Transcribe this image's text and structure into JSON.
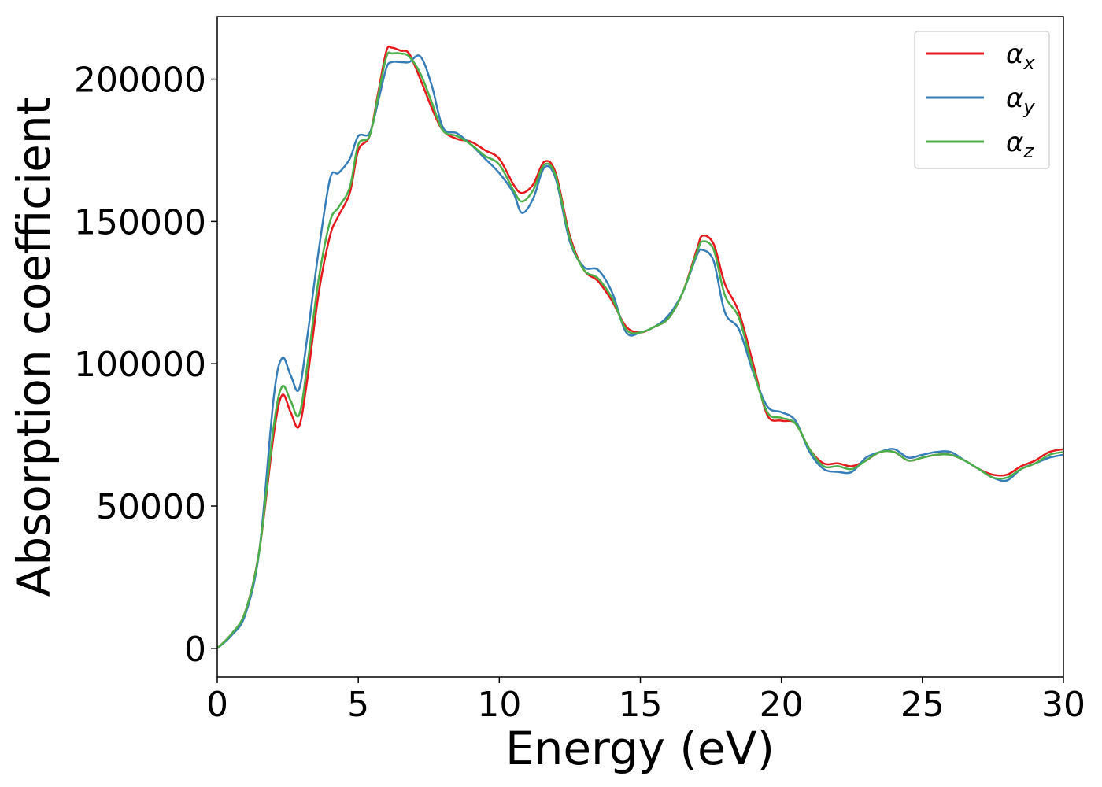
{
  "chart_data": {
    "type": "line",
    "xlabel": "Energy (eV)",
    "ylabel": "Absorption coefficient",
    "xlim": [
      0,
      30
    ],
    "ylim": [
      -10000,
      222000
    ],
    "xticks": [
      0,
      5,
      10,
      15,
      20,
      25,
      30
    ],
    "xtick_labels": [
      "0",
      "5",
      "10",
      "15",
      "20",
      "25",
      "30"
    ],
    "yticks": [
      0,
      50000,
      100000,
      150000,
      200000
    ],
    "ytick_labels": [
      "0",
      "50000",
      "100000",
      "150000",
      "200000"
    ],
    "grid": false,
    "legend_position": "top-right",
    "series": [
      {
        "name": "αx",
        "symbol": "α",
        "subscript": "x",
        "color": "#e41a1c",
        "x": [
          0,
          0.5,
          1.0,
          1.5,
          2.0,
          2.3,
          2.6,
          2.9,
          3.2,
          3.6,
          4.0,
          4.3,
          4.7,
          5.0,
          5.4,
          5.7,
          6.0,
          6.2,
          6.5,
          6.8,
          7.2,
          7.6,
          8.0,
          8.5,
          9.0,
          9.5,
          10.0,
          10.5,
          10.8,
          11.2,
          11.6,
          12.0,
          12.5,
          13.0,
          13.5,
          14.0,
          14.5,
          15.0,
          15.5,
          16.0,
          16.5,
          17.0,
          17.2,
          17.6,
          18.0,
          18.5,
          19.0,
          19.5,
          20.0,
          20.5,
          21.0,
          21.5,
          22.0,
          22.5,
          23.0,
          23.5,
          24.0,
          24.5,
          25.0,
          25.5,
          26.0,
          26.5,
          27.0,
          27.5,
          28.0,
          28.5,
          29.0,
          29.5,
          30.0
        ],
        "y": [
          0,
          5000,
          13000,
          35000,
          75000,
          89000,
          83000,
          78000,
          95000,
          125000,
          145000,
          152000,
          160000,
          175000,
          180000,
          195000,
          210000,
          211000,
          210000,
          209000,
          200000,
          190000,
          182000,
          179000,
          178000,
          175000,
          172000,
          163000,
          160000,
          163000,
          171000,
          167000,
          145000,
          133000,
          129000,
          122000,
          113000,
          111000,
          113000,
          116000,
          125000,
          140000,
          145000,
          142000,
          128000,
          118000,
          100000,
          82000,
          80000,
          79000,
          70000,
          65000,
          65000,
          64000,
          66000,
          69000,
          69000,
          66000,
          67000,
          68000,
          68000,
          66000,
          63000,
          61000,
          61000,
          64000,
          66000,
          69000,
          70000
        ]
      },
      {
        "name": "αy",
        "symbol": "α",
        "subscript": "y",
        "color": "#377eb8",
        "x": [
          0,
          0.5,
          1.0,
          1.5,
          2.0,
          2.3,
          2.6,
          2.9,
          3.2,
          3.6,
          4.0,
          4.3,
          4.7,
          5.0,
          5.4,
          5.7,
          6.0,
          6.2,
          6.5,
          6.8,
          7.2,
          7.6,
          8.0,
          8.5,
          9.0,
          9.5,
          10.0,
          10.5,
          10.8,
          11.2,
          11.6,
          12.0,
          12.5,
          13.0,
          13.5,
          14.0,
          14.5,
          15.0,
          15.5,
          16.0,
          16.5,
          17.0,
          17.2,
          17.6,
          18.0,
          18.5,
          19.0,
          19.5,
          20.0,
          20.5,
          21.0,
          21.5,
          22.0,
          22.5,
          23.0,
          23.5,
          24.0,
          24.5,
          25.0,
          25.5,
          26.0,
          26.5,
          27.0,
          27.5,
          28.0,
          28.5,
          29.0,
          29.5,
          30.0
        ],
        "y": [
          0,
          4500,
          12000,
          35000,
          88000,
          102000,
          96000,
          91000,
          110000,
          140000,
          165000,
          167000,
          172000,
          180000,
          181000,
          192000,
          204000,
          206000,
          206000,
          206000,
          208000,
          198000,
          183000,
          181000,
          177000,
          172000,
          167000,
          160000,
          153000,
          158000,
          169000,
          165000,
          143000,
          134000,
          133000,
          125000,
          111000,
          111000,
          113000,
          117000,
          125000,
          138000,
          140000,
          136000,
          118000,
          112000,
          97000,
          85000,
          83000,
          80000,
          69000,
          63000,
          62000,
          62000,
          67000,
          69000,
          70000,
          67000,
          68000,
          69000,
          69000,
          66000,
          63000,
          60000,
          59000,
          63000,
          65000,
          67000,
          68000
        ]
      },
      {
        "name": "αz",
        "symbol": "α",
        "subscript": "z",
        "color": "#4daf4a",
        "x": [
          0,
          0.5,
          1.0,
          1.5,
          2.0,
          2.3,
          2.6,
          2.9,
          3.2,
          3.6,
          4.0,
          4.3,
          4.7,
          5.0,
          5.4,
          5.7,
          6.0,
          6.2,
          6.5,
          6.8,
          7.2,
          7.6,
          8.0,
          8.5,
          9.0,
          9.5,
          10.0,
          10.5,
          10.8,
          11.2,
          11.6,
          12.0,
          12.5,
          13.0,
          13.5,
          14.0,
          14.5,
          15.0,
          15.5,
          16.0,
          16.5,
          17.0,
          17.2,
          17.6,
          18.0,
          18.5,
          19.0,
          19.5,
          20.0,
          20.5,
          21.0,
          21.5,
          22.0,
          22.5,
          23.0,
          23.5,
          24.0,
          24.5,
          25.0,
          25.5,
          26.0,
          26.5,
          27.0,
          27.5,
          28.0,
          28.5,
          29.0,
          29.5,
          30.0
        ],
        "y": [
          0,
          5000,
          13000,
          35000,
          78000,
          92000,
          87000,
          82000,
          100000,
          130000,
          150000,
          155000,
          162000,
          177000,
          180000,
          194000,
          208000,
          209000,
          209000,
          208000,
          202000,
          192000,
          182000,
          180000,
          177000,
          173000,
          170000,
          161000,
          157000,
          161000,
          170000,
          166000,
          144000,
          133000,
          130000,
          123000,
          112000,
          111000,
          113000,
          116000,
          125000,
          139000,
          143000,
          140000,
          124000,
          116000,
          98000,
          83000,
          81000,
          79000,
          70000,
          64000,
          64000,
          63000,
          66000,
          69000,
          69000,
          66000,
          67000,
          68000,
          68000,
          66000,
          63000,
          60000,
          60000,
          63000,
          65000,
          68000,
          69000
        ]
      }
    ]
  }
}
